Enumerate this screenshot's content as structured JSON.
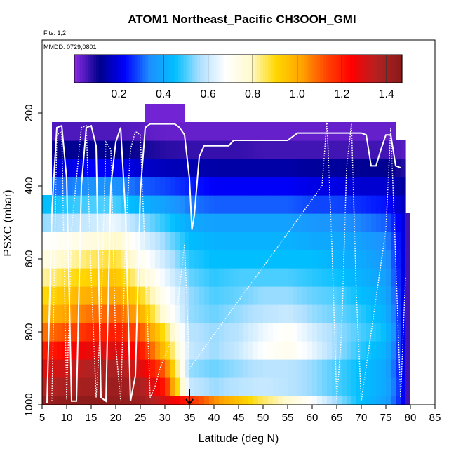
{
  "chart_data": {
    "type": "heatmap",
    "title": "ATOM1 Northeast_Pacific CH3OOH_GMI",
    "flights_note": "Flts: 1,2",
    "date_note": "MMDD: 0729,0801",
    "xlabel": "Latitude (deg N)",
    "ylabel": "PSXC (mbar)",
    "xlim": [
      5,
      85
    ],
    "ylim": [
      1000,
      0
    ],
    "x_ticks": [
      "5",
      "10",
      "15",
      "20",
      "25",
      "30",
      "35",
      "40",
      "45",
      "50",
      "55",
      "60",
      "65",
      "70",
      "75",
      "80",
      "85"
    ],
    "y_ticks": [
      "200",
      "400",
      "600",
      "800",
      "1000"
    ],
    "colorbar": {
      "range": [
        0.0,
        1.47
      ],
      "ticks": [
        "0.2",
        "0.4",
        "0.6",
        "0.8",
        "1.0",
        "1.2",
        "1.4"
      ],
      "colors": [
        "#8a2be2",
        "#00008b",
        "#0000ff",
        "#1e90ff",
        "#00bfff",
        "#b0e0ff",
        "#ffffff",
        "#fffacd",
        "#ffd700",
        "#ffa500",
        "#ff4500",
        "#ff0000",
        "#b22222",
        "#8b1a1a"
      ]
    },
    "grid": false,
    "marker": {
      "latitude": 35,
      "label": "arrow"
    },
    "cell": {
      "dlat": 1.0,
      "dp": 50
    },
    "values_field": {
      "description_levels_mbar": [
        1000,
        950,
        900,
        850,
        800,
        750,
        700,
        650,
        600,
        550,
        500,
        450,
        400,
        350,
        300,
        250,
        200
      ],
      "latitudes": [
        6,
        10,
        15,
        20,
        25,
        30,
        35,
        40,
        45,
        50,
        55,
        60,
        65,
        70,
        75,
        79
      ],
      "rows": [
        [
          1.42,
          1.45,
          1.46,
          1.45,
          1.42,
          1.3,
          1.18,
          1.05,
          0.95,
          0.85,
          0.78,
          0.68,
          0.55,
          0.45,
          0.38,
          0.2
        ],
        [
          1.35,
          1.38,
          1.4,
          1.42,
          1.38,
          1.2,
          0.6,
          0.55,
          0.58,
          0.6,
          0.58,
          0.55,
          0.5,
          0.45,
          0.4,
          0.2
        ],
        [
          1.3,
          1.32,
          1.36,
          1.38,
          1.3,
          1.1,
          0.55,
          0.52,
          0.55,
          0.58,
          0.58,
          0.55,
          0.5,
          0.45,
          0.4,
          0.18
        ],
        [
          1.2,
          1.24,
          1.28,
          1.3,
          1.22,
          0.95,
          0.6,
          0.55,
          0.6,
          0.68,
          0.72,
          0.65,
          0.55,
          0.48,
          0.42,
          0.18
        ],
        [
          1.08,
          1.12,
          1.18,
          1.2,
          1.12,
          0.88,
          0.58,
          0.55,
          0.58,
          0.65,
          0.7,
          0.62,
          0.55,
          0.5,
          0.45,
          0.18
        ],
        [
          0.98,
          1.02,
          1.08,
          1.1,
          1.0,
          0.75,
          0.55,
          0.52,
          0.55,
          0.58,
          0.6,
          0.55,
          0.52,
          0.48,
          0.42,
          0.18
        ],
        [
          0.9,
          0.95,
          1.0,
          1.02,
          0.9,
          0.7,
          0.55,
          0.5,
          0.52,
          0.55,
          0.55,
          0.52,
          0.5,
          0.45,
          0.4,
          0.18
        ],
        [
          0.82,
          0.88,
          0.92,
          0.95,
          0.8,
          0.65,
          0.52,
          0.48,
          0.5,
          0.5,
          0.5,
          0.48,
          0.46,
          0.42,
          0.38,
          0.18
        ],
        [
          0.75,
          0.8,
          0.85,
          0.88,
          0.72,
          0.6,
          0.48,
          0.45,
          0.45,
          0.45,
          0.45,
          0.45,
          0.42,
          0.4,
          0.36,
          0.18
        ],
        [
          0.68,
          0.72,
          0.75,
          0.8,
          0.65,
          0.55,
          0.45,
          0.42,
          0.42,
          0.42,
          0.42,
          0.4,
          0.4,
          0.38,
          0.34,
          0.18
        ],
        [
          0.55,
          0.58,
          0.6,
          0.65,
          0.55,
          0.48,
          0.4,
          0.38,
          0.38,
          0.38,
          0.38,
          0.36,
          0.35,
          0.33,
          0.3,
          0.18
        ],
        [
          0.45,
          0.48,
          0.5,
          0.5,
          0.42,
          0.38,
          0.32,
          0.3,
          0.3,
          0.3,
          0.3,
          0.28,
          0.28,
          0.26,
          0.24,
          0.15
        ],
        [
          0.3,
          0.32,
          0.35,
          0.35,
          0.3,
          0.28,
          0.25,
          0.22,
          0.22,
          0.22,
          0.22,
          0.2,
          0.2,
          0.18,
          0.18,
          0.12
        ],
        [
          0.18,
          0.2,
          0.22,
          0.22,
          0.18,
          0.16,
          0.15,
          0.14,
          0.14,
          0.14,
          0.14,
          0.13,
          0.13,
          0.12,
          0.12,
          0.08
        ],
        [
          0.1,
          0.12,
          0.12,
          0.12,
          0.1,
          0.08,
          0.07,
          0.07,
          0.07,
          0.06,
          0.06,
          0.06,
          0.06,
          0.06,
          0.06,
          0.04
        ],
        [
          0.05,
          0.05,
          0.05,
          0.05,
          0.04,
          0.03,
          0.03,
          0.03,
          0.03,
          0.03,
          0.03,
          0.03,
          0.03,
          0.03,
          0.03,
          0.03
        ],
        [
          0.03,
          0.03,
          0.03,
          0.03,
          0.02,
          0.02,
          0.02,
          0.02,
          0.02,
          0.02,
          0.02,
          0.02,
          0.02,
          0.02,
          0.02,
          0.02
        ]
      ]
    },
    "flight_track_solid": [
      [
        6,
        995
      ],
      [
        7,
        470
      ],
      [
        8,
        240
      ],
      [
        9,
        235
      ],
      [
        10,
        380
      ],
      [
        11,
        990
      ],
      [
        12,
        990
      ],
      [
        13,
        400
      ],
      [
        14,
        240
      ],
      [
        15,
        235
      ],
      [
        16,
        290
      ],
      [
        17,
        980
      ],
      [
        18,
        990
      ],
      [
        19,
        400
      ],
      [
        20,
        280
      ],
      [
        21,
        240
      ],
      [
        22,
        480
      ],
      [
        23,
        990
      ],
      [
        24,
        920
      ],
      [
        25,
        420
      ],
      [
        26,
        240
      ],
      [
        27,
        230
      ],
      [
        28,
        230
      ],
      [
        31,
        230
      ],
      [
        32,
        230
      ],
      [
        33,
        240
      ],
      [
        34,
        260
      ],
      [
        35,
        380
      ],
      [
        35.5,
        520
      ],
      [
        36,
        480
      ],
      [
        37,
        320
      ],
      [
        38,
        290
      ],
      [
        40,
        290
      ],
      [
        43,
        290
      ],
      [
        44,
        275
      ],
      [
        48,
        275
      ],
      [
        55,
        275
      ],
      [
        57,
        255
      ],
      [
        62,
        255
      ],
      [
        66,
        255
      ],
      [
        70,
        255
      ],
      [
        71,
        260
      ],
      [
        72,
        345
      ],
      [
        73,
        345
      ],
      [
        74,
        300
      ],
      [
        75,
        260
      ],
      [
        76,
        260
      ],
      [
        77,
        345
      ],
      [
        78,
        350
      ]
    ],
    "flight_track_dotted": [
      [
        7,
        990
      ],
      [
        8,
        260
      ],
      [
        9,
        250
      ],
      [
        10,
        985
      ],
      [
        11,
        520
      ],
      [
        12,
        380
      ],
      [
        13,
        240
      ],
      [
        14,
        235
      ],
      [
        15,
        650
      ],
      [
        16,
        980
      ],
      [
        17,
        760
      ],
      [
        18,
        280
      ],
      [
        19,
        300
      ],
      [
        20,
        840
      ],
      [
        21,
        990
      ],
      [
        22,
        540
      ],
      [
        23,
        300
      ],
      [
        24,
        250
      ],
      [
        25,
        260
      ],
      [
        26,
        600
      ],
      [
        27,
        980
      ],
      [
        28,
        950
      ],
      [
        29,
        900
      ],
      [
        32,
        800
      ],
      [
        34,
        560
      ],
      [
        35,
        900
      ],
      [
        62,
        400
      ],
      [
        63,
        220
      ],
      [
        64,
        560
      ],
      [
        65,
        990
      ],
      [
        66,
        800
      ],
      [
        67,
        350
      ],
      [
        68,
        230
      ],
      [
        69,
        700
      ],
      [
        70,
        990
      ],
      [
        75,
        520
      ],
      [
        76,
        240
      ],
      [
        77,
        600
      ],
      [
        78,
        980
      ],
      [
        79,
        650
      ]
    ]
  }
}
